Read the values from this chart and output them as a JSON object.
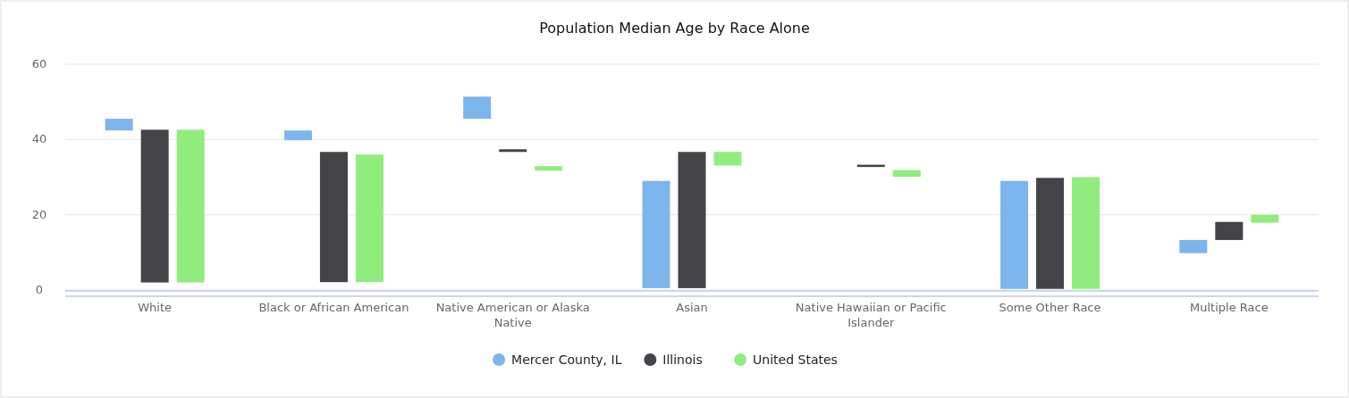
{
  "chart_data": {
    "type": "bar",
    "title": "Population Median Age by Race Alone",
    "categories": [
      "White",
      "Black or African American",
      "Native American or Alaska Native",
      "Asian",
      "Native Hawaiian or Pacific Islander",
      "Some Other Race",
      "Multiple Race"
    ],
    "series": [
      {
        "name": "Mercer County, IL",
        "color": "#7cb5ec",
        "base": [
          42.4,
          39.8,
          45.5,
          0.5,
          null,
          0.3,
          9.8
        ],
        "values": [
          3.1,
          2.6,
          5.9,
          28.5,
          null,
          28.7,
          3.5
        ]
      },
      {
        "name": "Illinois",
        "color": "#434348",
        "base": [
          2,
          2.1,
          36.7,
          0.5,
          32.7,
          0.3,
          13.3
        ],
        "values": [
          40.6,
          34.6,
          0.7,
          36.2,
          0.6,
          29.5,
          4.8
        ]
      },
      {
        "name": "United States",
        "color": "#90ed7d",
        "base": [
          2,
          2.1,
          31.7,
          33.1,
          30.1,
          0.3,
          17.9
        ],
        "values": [
          40.6,
          33.9,
          1.2,
          3.6,
          1.8,
          29.7,
          2.1
        ]
      }
    ],
    "ylim": [
      0,
      60
    ],
    "yticks": [
      0,
      20,
      40,
      60
    ],
    "grid": "y",
    "legend": "bottom"
  }
}
